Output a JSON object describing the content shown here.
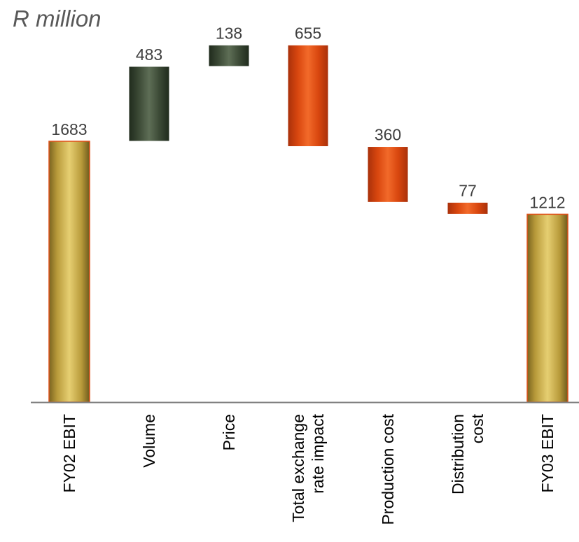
{
  "unit_label": "R million",
  "colors": {
    "total": "#c8a94a",
    "increase": "#4a5a44",
    "decrease": "#e0501a",
    "axis": "#808080"
  },
  "chart_data": {
    "type": "bar",
    "subtype": "waterfall",
    "title": "",
    "ylabel": "R million",
    "ylim": [
      0,
      2304
    ],
    "grid": false,
    "categories": [
      [
        "FY02 EBIT"
      ],
      [
        "Volume"
      ],
      [
        "Price"
      ],
      [
        "Total exchange",
        "rate impact"
      ],
      [
        "Production cost"
      ],
      [
        "Distribution",
        "cost"
      ],
      [
        "FY03 EBIT"
      ]
    ],
    "values": [
      1683,
      483,
      138,
      655,
      360,
      77,
      1212
    ],
    "kinds": [
      "total",
      "increase",
      "increase",
      "decrease",
      "decrease",
      "decrease",
      "total"
    ]
  }
}
